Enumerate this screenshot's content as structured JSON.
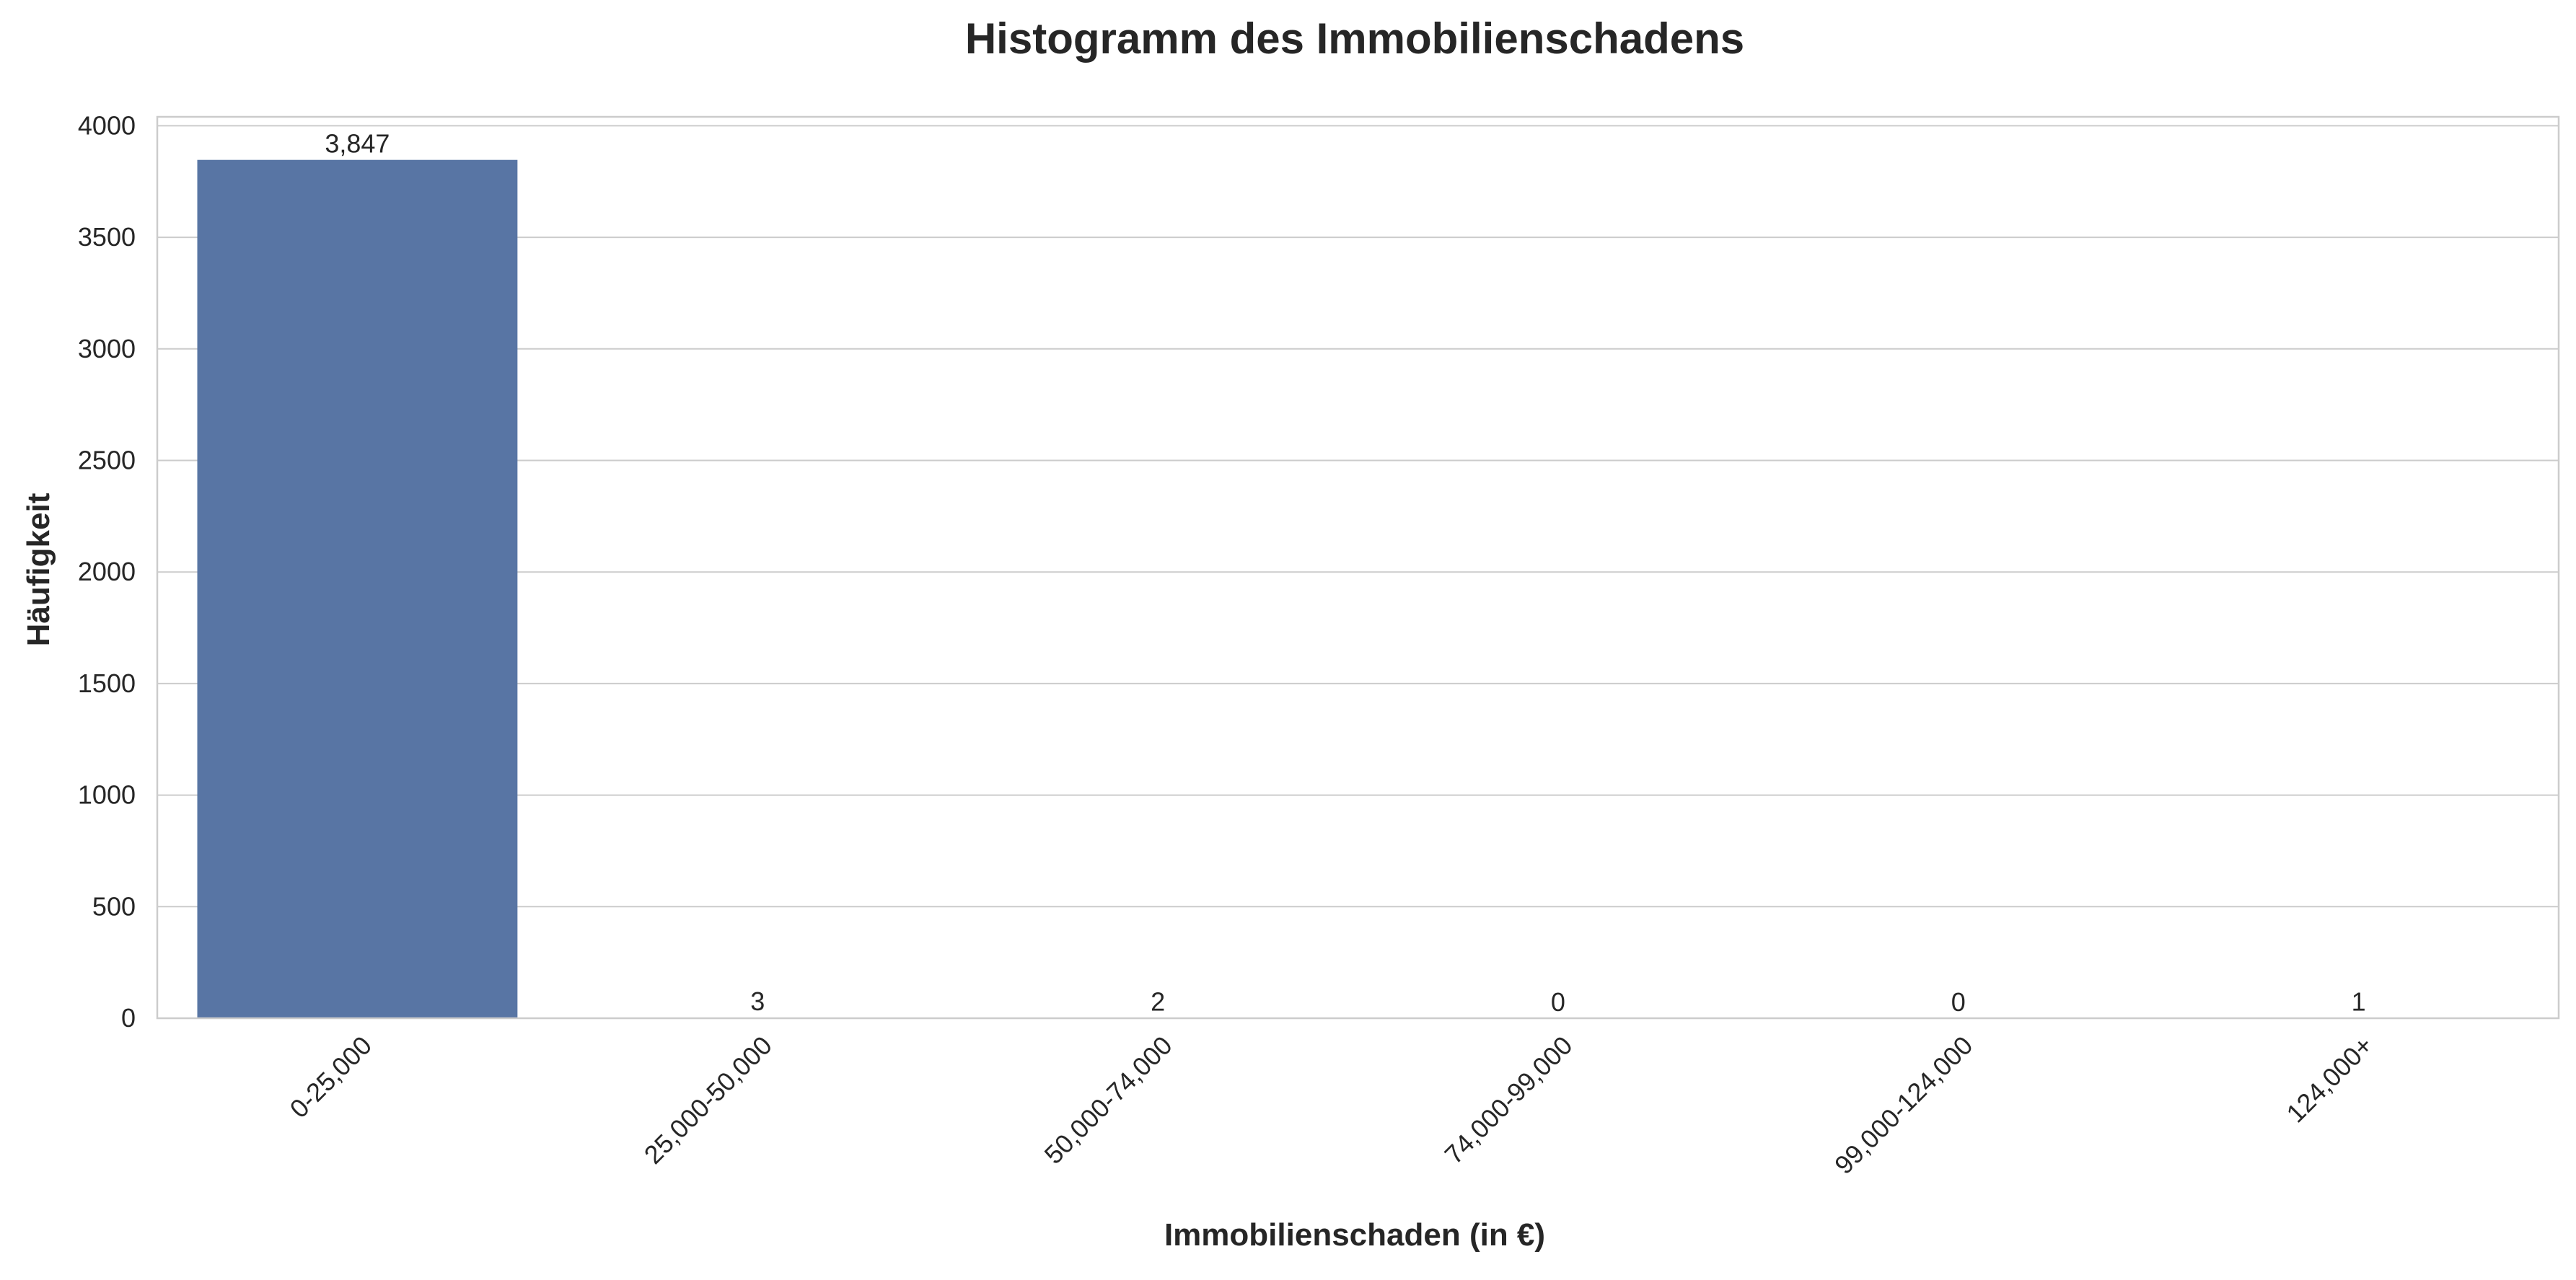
{
  "chart_data": {
    "type": "bar",
    "title": "Histogramm des Immobilienschadens",
    "xlabel": "Immobilienschaden (in €)",
    "ylabel": "Häufigkeit",
    "categories": [
      "0-25,000",
      "25,000-50,000",
      "50,000-74,000",
      "74,000-99,000",
      "99,000-124,000",
      "124,000+"
    ],
    "values": [
      3847,
      3,
      2,
      0,
      0,
      1
    ],
    "data_labels": [
      "3,847",
      "3",
      "2",
      "0",
      "0",
      "1"
    ],
    "ylim": [
      0,
      4040
    ],
    "yticks": [
      0,
      500,
      1000,
      1500,
      2000,
      2500,
      3000,
      3500,
      4000
    ],
    "grid": true,
    "bar_color": "#5875a4",
    "grid_color": "#cccccc",
    "axes_edge_color": "#cccccc"
  }
}
